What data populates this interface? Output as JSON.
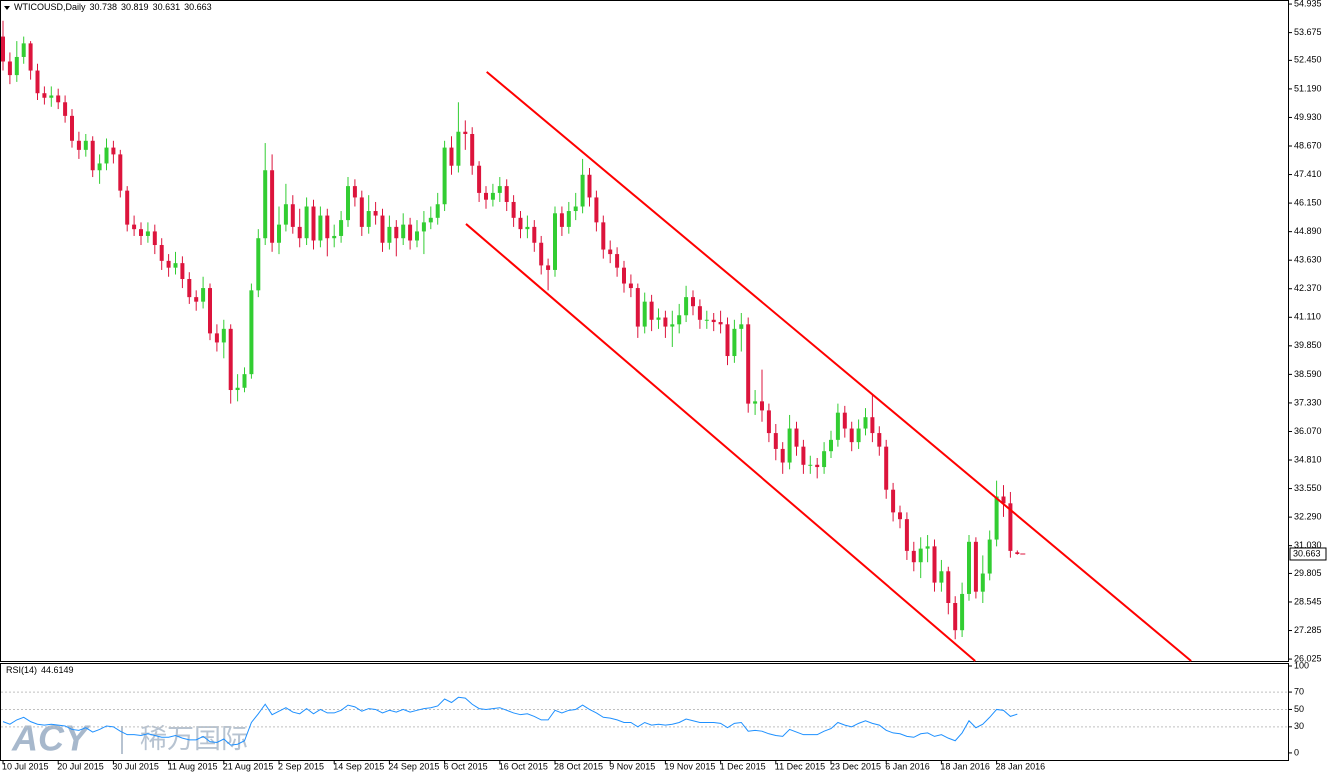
{
  "chart_data": [
    {
      "type": "candlestick",
      "title": "WTICOUSD,Daily",
      "categories": [
        "10 Jul 2015",
        null,
        null,
        null,
        null,
        null,
        null,
        null,
        "20 Jul 2015",
        null,
        null,
        null,
        null,
        null,
        null,
        null,
        "30 Jul 2015",
        null,
        null,
        null,
        null,
        null,
        null,
        null,
        "11 Aug 2015",
        null,
        null,
        null,
        null,
        null,
        null,
        null,
        "21 Aug 2015",
        null,
        null,
        null,
        null,
        null,
        null,
        null,
        "2 Sep 2015",
        null,
        null,
        null,
        null,
        null,
        null,
        null,
        "14 Sep 2015",
        null,
        null,
        null,
        null,
        null,
        null,
        null,
        "24 Sep 2015",
        null,
        null,
        null,
        null,
        null,
        null,
        null,
        "6 Oct 2015",
        null,
        null,
        null,
        null,
        null,
        null,
        null,
        "16 Oct 2015",
        null,
        null,
        null,
        null,
        null,
        null,
        null,
        "28 Oct 2015",
        null,
        null,
        null,
        null,
        null,
        null,
        null,
        "9 Nov 2015",
        null,
        null,
        null,
        null,
        null,
        null,
        null,
        "19 Nov 2015",
        null,
        null,
        null,
        null,
        null,
        null,
        null,
        "1 Dec 2015",
        null,
        null,
        null,
        null,
        null,
        null,
        null,
        "11 Dec 2015",
        null,
        null,
        null,
        null,
        null,
        null,
        null,
        "23 Dec 2015",
        null,
        null,
        null,
        null,
        null,
        null,
        null,
        "6 Jan 2016",
        null,
        null,
        null,
        null,
        null,
        null,
        null,
        "18 Jan 2016",
        null,
        null,
        null,
        null,
        null,
        null,
        null,
        "28 Jan 2016",
        null,
        null,
        null
      ],
      "open": [
        53.5,
        52.4,
        51.8,
        52.6,
        53.2,
        52.0,
        51.0,
        50.8,
        50.9,
        50.6,
        50.0,
        48.9,
        48.5,
        48.9,
        47.6,
        47.9,
        48.6,
        48.3,
        46.7,
        45.2,
        45.0,
        44.7,
        44.9,
        44.3,
        43.6,
        43.3,
        43.5,
        42.8,
        42.0,
        41.8,
        42.4,
        40.4,
        40.0,
        40.6,
        37.9,
        38.0,
        38.6,
        42.3,
        44.6,
        47.6,
        44.4,
        45.2,
        46.1,
        45.1,
        44.6,
        46.0,
        44.5,
        45.6,
        44.6,
        44.7,
        45.4,
        46.9,
        46.4,
        45.1,
        45.8,
        45.6,
        44.4,
        45.1,
        44.6,
        45.2,
        44.5,
        44.9,
        45.3,
        45.5,
        46.1,
        48.6,
        47.8,
        49.3,
        49.2,
        47.8,
        46.6,
        46.3,
        46.6,
        46.9,
        46.2,
        45.5,
        45.0,
        45.1,
        44.4,
        43.4,
        43.2,
        45.7,
        45.1,
        45.8,
        46.0,
        47.4,
        46.4,
        45.3,
        44.1,
        43.9,
        43.3,
        42.6,
        42.4,
        40.7,
        41.8,
        41.0,
        41.1,
        40.7,
        40.8,
        41.2,
        42.0,
        41.6,
        41.0,
        41.0,
        40.9,
        40.8,
        39.4,
        40.6,
        40.8,
        37.3,
        37.4,
        37.0,
        36.0,
        35.3,
        34.7,
        36.2,
        35.4,
        34.6,
        34.6,
        34.5,
        35.2,
        35.7,
        36.9,
        36.2,
        35.6,
        36.2,
        36.7,
        36.0,
        35.4,
        33.5,
        32.5,
        32.2,
        30.8,
        30.3,
        30.9,
        31.0,
        29.4,
        29.9,
        28.5,
        27.3,
        28.9,
        31.2,
        29.0,
        29.8,
        31.3,
        33.2,
        32.9,
        30.738
      ],
      "high": [
        54.2,
        52.8,
        53.3,
        53.5,
        53.3,
        52.3,
        51.3,
        51.3,
        51.2,
        50.9,
        50.3,
        49.3,
        49.2,
        49.1,
        48.3,
        49.0,
        48.9,
        48.5,
        46.9,
        45.6,
        45.3,
        45.3,
        45.2,
        44.6,
        43.9,
        44.0,
        43.8,
        43.1,
        42.3,
        42.9,
        42.6,
        40.8,
        41.0,
        40.8,
        38.6,
        38.9,
        42.6,
        45.0,
        48.8,
        48.3,
        46.0,
        47.0,
        46.5,
        45.9,
        46.4,
        46.3,
        46.0,
        45.9,
        45.2,
        45.8,
        47.3,
        47.2,
        46.7,
        46.5,
        46.2,
        45.9,
        45.6,
        45.4,
        45.7,
        45.5,
        45.4,
        45.8,
        46.0,
        46.6,
        48.9,
        49.1,
        50.6,
        49.8,
        49.5,
        48.0,
        46.9,
        47.0,
        47.3,
        47.2,
        46.5,
        45.8,
        45.6,
        45.4,
        44.7,
        43.7,
        46.0,
        46.0,
        46.2,
        46.6,
        48.1,
        47.7,
        46.7,
        45.6,
        44.5,
        44.2,
        43.6,
        43.0,
        42.6,
        42.2,
        42.1,
        41.5,
        41.4,
        41.4,
        41.7,
        42.5,
        42.3,
        41.9,
        41.4,
        41.3,
        41.4,
        41.1,
        41.0,
        41.3,
        41.1,
        37.9,
        38.8,
        37.3,
        36.4,
        35.6,
        36.8,
        36.5,
        35.7,
        35.0,
        34.9,
        35.6,
        36.1,
        37.3,
        37.2,
        36.5,
        36.6,
        37.1,
        37.7,
        36.3,
        35.7,
        33.8,
        32.8,
        32.5,
        31.2,
        31.4,
        31.5,
        31.3,
        30.4,
        30.1,
        28.8,
        29.4,
        31.5,
        31.4,
        30.6,
        31.7,
        33.9,
        33.7,
        33.4,
        30.819
      ],
      "low": [
        52.0,
        51.4,
        51.5,
        52.3,
        51.6,
        50.7,
        50.5,
        50.4,
        50.3,
        49.7,
        48.6,
        48.1,
        48.2,
        47.3,
        47.0,
        47.6,
        47.9,
        46.4,
        44.9,
        44.7,
        44.3,
        44.4,
        43.9,
        43.2,
        42.9,
        43.0,
        42.4,
        41.7,
        41.4,
        41.5,
        40.1,
        39.6,
        39.3,
        37.3,
        37.4,
        37.8,
        38.4,
        42.0,
        44.3,
        44.0,
        43.9,
        44.9,
        44.8,
        44.2,
        44.3,
        44.1,
        44.2,
        43.8,
        44.2,
        44.4,
        45.1,
        46.0,
        44.7,
        44.8,
        45.2,
        44.0,
        44.1,
        43.8,
        44.3,
        44.1,
        44.2,
        43.9,
        45.0,
        45.2,
        45.8,
        47.4,
        47.5,
        48.5,
        47.4,
        46.2,
        45.9,
        46.0,
        46.2,
        45.8,
        45.1,
        44.6,
        44.6,
        44.0,
        43.0,
        42.3,
        42.9,
        44.7,
        44.8,
        45.4,
        45.7,
        46.0,
        44.9,
        43.7,
        43.5,
        42.9,
        42.2,
        42.0,
        40.2,
        40.4,
        40.5,
        40.6,
        40.2,
        39.8,
        40.4,
        40.9,
        41.2,
        40.6,
        40.6,
        40.5,
        40.4,
        39.0,
        39.1,
        39.6,
        36.9,
        36.8,
        36.5,
        35.6,
        34.8,
        34.2,
        34.4,
        35.0,
        34.2,
        34.2,
        34.0,
        34.2,
        34.9,
        35.4,
        35.8,
        35.2,
        35.3,
        35.9,
        35.6,
        35.0,
        33.1,
        32.1,
        31.8,
        30.4,
        29.9,
        29.6,
        30.3,
        29.0,
        29.0,
        28.0,
        26.9,
        27.0,
        28.6,
        28.7,
        28.5,
        29.5,
        31.0,
        32.3,
        30.5,
        30.631
      ],
      "close": [
        52.4,
        51.8,
        52.6,
        53.2,
        52.0,
        51.0,
        50.8,
        50.9,
        50.6,
        50.0,
        48.9,
        48.5,
        48.9,
        47.6,
        47.9,
        48.6,
        48.3,
        46.7,
        45.2,
        45.0,
        44.7,
        44.9,
        44.3,
        43.6,
        43.3,
        43.5,
        42.8,
        42.0,
        41.8,
        42.4,
        40.4,
        40.0,
        40.6,
        37.9,
        38.0,
        38.6,
        42.3,
        44.6,
        47.6,
        44.4,
        45.2,
        46.1,
        45.1,
        44.6,
        46.0,
        44.5,
        45.6,
        44.6,
        44.7,
        45.4,
        46.9,
        46.4,
        45.1,
        45.8,
        45.6,
        44.4,
        45.1,
        44.6,
        45.2,
        44.5,
        44.9,
        45.3,
        45.5,
        46.1,
        48.6,
        47.8,
        49.3,
        49.2,
        47.8,
        46.6,
        46.3,
        46.6,
        46.9,
        46.2,
        45.5,
        45.0,
        45.1,
        44.4,
        43.4,
        43.2,
        45.7,
        45.1,
        45.8,
        46.0,
        47.4,
        46.4,
        45.3,
        44.1,
        43.9,
        43.3,
        42.6,
        42.4,
        40.7,
        41.8,
        41.0,
        41.1,
        40.7,
        40.8,
        41.2,
        42.0,
        41.6,
        41.0,
        41.0,
        40.9,
        40.8,
        39.4,
        40.6,
        40.8,
        37.3,
        37.4,
        37.0,
        36.0,
        35.3,
        34.7,
        36.2,
        35.4,
        34.6,
        34.6,
        34.5,
        35.2,
        35.7,
        36.9,
        36.2,
        35.6,
        36.2,
        36.7,
        36.0,
        35.4,
        33.5,
        32.5,
        32.2,
        30.8,
        30.3,
        30.9,
        31.0,
        29.4,
        29.9,
        28.5,
        27.3,
        28.9,
        31.2,
        29.0,
        29.8,
        31.3,
        33.2,
        32.9,
        30.8,
        30.663
      ],
      "up_color": "#32cd32",
      "down_color": "#dc143c",
      "ylim": [
        25.94,
        55.07
      ],
      "yticks": [
        54.935,
        53.675,
        {
          "value": 52.45,
          "label": "52.450"
        },
        {
          "value": 51.19,
          "label": "51.190"
        },
        {
          "value": 49.93,
          "label": "49.930"
        },
        {
          "value": 48.67,
          "label": "48.670"
        },
        {
          "value": 47.41,
          "label": "47.410"
        },
        {
          "value": 46.15,
          "label": "46.150"
        },
        {
          "value": 44.89,
          "label": "44.890"
        },
        {
          "value": 43.63,
          "label": "43.630"
        },
        {
          "value": 42.37,
          "label": "42.370"
        },
        {
          "value": 41.11,
          "label": "41.110"
        },
        {
          "value": 39.85,
          "label": "39.850"
        },
        {
          "value": 38.59,
          "label": "38.590"
        },
        {
          "value": 37.33,
          "label": "37.330"
        },
        {
          "value": 36.07,
          "label": "36.070"
        },
        {
          "value": 34.81,
          "label": "34.810"
        },
        {
          "value": 33.55,
          "label": "33.550"
        },
        {
          "value": 32.29,
          "label": "32.290"
        },
        {
          "value": 31.03,
          "label": "31.030"
        },
        29.805,
        28.545,
        27.285,
        26.025
      ],
      "grid": false,
      "trend_lines": [
        {
          "color": "#ff0000",
          "x": [
            70.1,
            172.2
          ],
          "y": [
            51.94,
            25.94
          ]
        },
        {
          "color": "#ff0000",
          "x": [
            67.1,
            140.9
          ],
          "y": [
            45.23,
            25.94
          ]
        }
      ]
    },
    {
      "type": "line",
      "title": "RSI(14)",
      "color": "#1e90ff",
      "values": [
        36,
        33,
        38,
        41,
        36,
        33,
        32,
        33,
        32,
        31,
        27,
        26,
        29,
        24,
        27,
        31,
        30,
        25,
        21,
        21,
        20,
        22,
        20,
        18,
        18,
        20,
        17,
        15,
        15,
        19,
        13,
        12,
        16,
        9,
        10,
        14,
        35,
        45,
        56,
        44,
        48,
        52,
        47,
        45,
        51,
        45,
        50,
        46,
        46,
        49,
        55,
        53,
        48,
        51,
        50,
        46,
        49,
        47,
        50,
        47,
        49,
        51,
        52,
        54,
        62,
        58,
        64,
        63,
        56,
        51,
        50,
        51,
        52,
        49,
        46,
        44,
        45,
        42,
        38,
        38,
        49,
        46,
        49,
        50,
        55,
        50,
        46,
        41,
        40,
        38,
        35,
        35,
        30,
        35,
        32,
        33,
        32,
        33,
        35,
        39,
        37,
        35,
        35,
        35,
        34,
        29,
        34,
        35,
        25,
        26,
        25,
        22,
        20,
        19,
        27,
        24,
        21,
        21,
        21,
        25,
        28,
        35,
        32,
        30,
        34,
        37,
        34,
        32,
        26,
        23,
        22,
        19,
        18,
        22,
        23,
        19,
        21,
        17,
        14,
        23,
        37,
        29,
        33,
        41,
        50,
        49,
        42,
        44.6149
      ],
      "ylim": [
        -9.3,
        102.3
      ],
      "yticks": [
        100,
        70,
        50,
        30,
        0
      ],
      "grid": true
    }
  ],
  "watermark": {
    "brand": "ACY",
    "text": "稀万国际"
  }
}
